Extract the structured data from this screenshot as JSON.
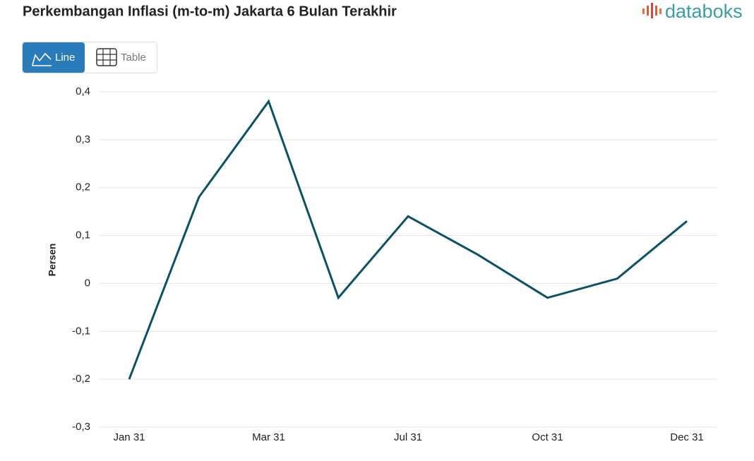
{
  "brand": "databoks",
  "controls": {
    "line": "Line",
    "table": "Table"
  },
  "chart_data": {
    "type": "line",
    "title": "Perkembangan Inflasi (m-to-m) Jakarta 6 Bulan Terakhir",
    "y_label": "Persen",
    "categories": [
      "Jan 31",
      null,
      "Mar 31",
      null,
      "Jul 31",
      null,
      "Oct 31",
      null,
      "Dec 31"
    ],
    "values": [
      -0.2,
      0.18,
      0.38,
      -0.03,
      0.14,
      0.06,
      -0.03,
      0.01,
      0.13
    ],
    "color": "#0b5168",
    "ylim": [
      -0.3,
      0.4
    ],
    "yticks": [
      {
        "value": -0.3,
        "label": "-0,3"
      },
      {
        "value": -0.2,
        "label": "-0,2"
      },
      {
        "value": -0.1,
        "label": "-0,1"
      },
      0,
      {
        "value": 0.1,
        "label": "0,1"
      },
      {
        "value": 0.2,
        "label": "0,2"
      },
      {
        "value": 0.3,
        "label": "0,3"
      },
      {
        "value": 0.4,
        "label": "0,4"
      }
    ],
    "grid": true
  }
}
